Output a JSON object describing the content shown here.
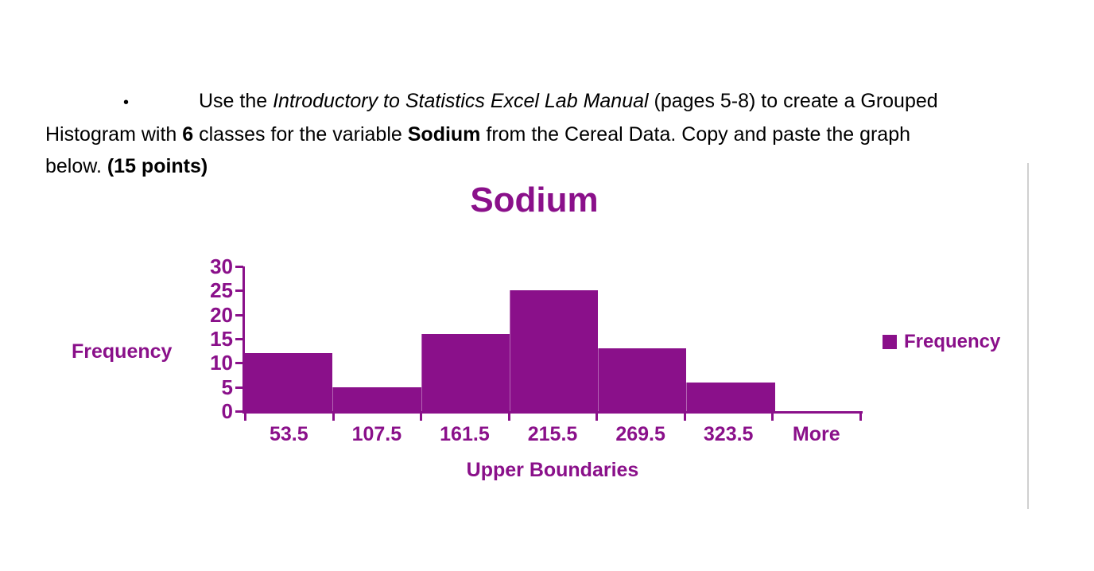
{
  "accent_color": "#8A108A",
  "page_background": "#ffffff",
  "instructions": {
    "bullet": "•",
    "seg1": "Use the ",
    "seg2_italic": "Introductory to Statistics Excel Lab Manual",
    "seg3": " (pages 5-8) to create a Grouped Histogram with ",
    "seg4_bold": "6",
    "seg5": " classes for the variable ",
    "seg6_bold": "Sodium",
    "seg7": " from the Cereal Data. Copy and paste the graph below. ",
    "seg8_bold": "(15 points)"
  },
  "chart_data": {
    "type": "bar",
    "title": "Sodium",
    "categories": [
      "53.5",
      "107.5",
      "161.5",
      "215.5",
      "269.5",
      "323.5",
      "More"
    ],
    "values": [
      12,
      5,
      16,
      25,
      13,
      6,
      0
    ],
    "xlabel": "Upper Boundaries",
    "ylabel": "Frequency",
    "ylim": [
      0,
      30
    ],
    "yticks": [
      0,
      5,
      10,
      15,
      20,
      25,
      30
    ],
    "legend": [
      "Frequency"
    ],
    "legend_position": "right",
    "bar_color": "#8A108A",
    "grid": false
  }
}
